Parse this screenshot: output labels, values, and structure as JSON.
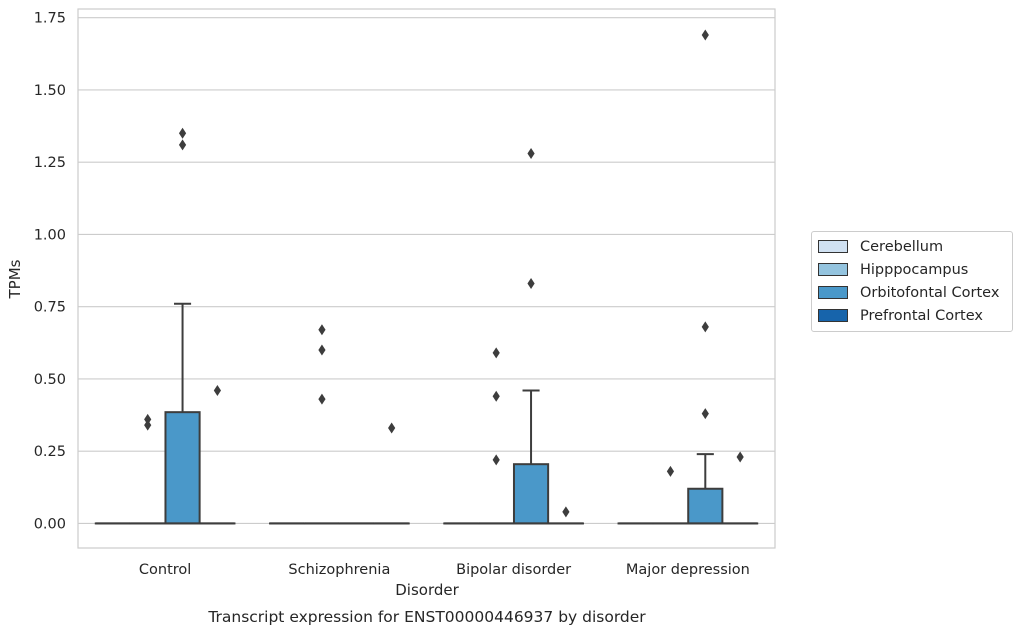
{
  "chart_data": {
    "type": "box",
    "title": "Transcript expression for ENST00000446937 by disorder",
    "xlabel": "Disorder",
    "ylabel": "TPMs",
    "ylim": [
      -0.085,
      1.78
    ],
    "yticks": [
      "0.00",
      "0.25",
      "0.50",
      "0.75",
      "1.00",
      "1.25",
      "1.50",
      "1.75"
    ],
    "grid": true,
    "legend_position": "right",
    "categories": [
      "Control",
      "Schizophrenia",
      "Bipolar disorder",
      "Major depression"
    ],
    "series": [
      {
        "name": "Cerebellum",
        "color": "#d0e1f2",
        "boxes": [
          {
            "q1": 0,
            "median": 0,
            "q3": 0,
            "whisker_low": 0,
            "whisker_high": 0,
            "outliers": []
          },
          {
            "q1": 0,
            "median": 0,
            "q3": 0,
            "whisker_low": 0,
            "whisker_high": 0,
            "outliers": []
          },
          {
            "q1": 0,
            "median": 0,
            "q3": 0,
            "whisker_low": 0,
            "whisker_high": 0,
            "outliers": []
          },
          {
            "q1": 0,
            "median": 0,
            "q3": 0,
            "whisker_low": 0,
            "whisker_high": 0,
            "outliers": []
          }
        ]
      },
      {
        "name": "Hipppocampus",
        "color": "#94c4df",
        "boxes": [
          {
            "q1": 0,
            "median": 0,
            "q3": 0,
            "whisker_low": 0,
            "whisker_high": 0,
            "outliers": [
              0.34,
              0.36
            ]
          },
          {
            "q1": 0,
            "median": 0,
            "q3": 0,
            "whisker_low": 0,
            "whisker_high": 0,
            "outliers": [
              0.43,
              0.6,
              0.67
            ]
          },
          {
            "q1": 0,
            "median": 0,
            "q3": 0,
            "whisker_low": 0,
            "whisker_high": 0,
            "outliers": [
              0.22,
              0.44,
              0.59
            ]
          },
          {
            "q1": 0,
            "median": 0,
            "q3": 0,
            "whisker_low": 0,
            "whisker_high": 0,
            "outliers": [
              0.18
            ]
          }
        ]
      },
      {
        "name": "Orbitofontal Cortex",
        "color": "#4a98c9",
        "boxes": [
          {
            "q1": 0,
            "median": 0,
            "q3": 0.385,
            "whisker_low": 0,
            "whisker_high": 0.76,
            "outliers": [
              1.31,
              1.35
            ]
          },
          {
            "q1": 0,
            "median": 0,
            "q3": 0,
            "whisker_low": 0,
            "whisker_high": 0,
            "outliers": []
          },
          {
            "q1": 0,
            "median": 0,
            "q3": 0.205,
            "whisker_low": 0,
            "whisker_high": 0.46,
            "outliers": [
              0.83,
              1.28
            ]
          },
          {
            "q1": 0,
            "median": 0,
            "q3": 0.12,
            "whisker_low": 0,
            "whisker_high": 0.24,
            "outliers": [
              0.38,
              0.68,
              1.69
            ]
          }
        ]
      },
      {
        "name": "Prefrontal Cortex",
        "color": "#1764ab",
        "boxes": [
          {
            "q1": 0,
            "median": 0,
            "q3": 0,
            "whisker_low": 0,
            "whisker_high": 0,
            "outliers": [
              0.46
            ]
          },
          {
            "q1": 0,
            "median": 0,
            "q3": 0,
            "whisker_low": 0,
            "whisker_high": 0,
            "outliers": [
              0.33
            ]
          },
          {
            "q1": 0,
            "median": 0,
            "q3": 0,
            "whisker_low": 0,
            "whisker_high": 0,
            "outliers": [
              0.04
            ]
          },
          {
            "q1": 0,
            "median": 0,
            "q3": 0,
            "whisker_low": 0,
            "whisker_high": 0,
            "outliers": [
              0.23
            ]
          }
        ]
      }
    ]
  }
}
